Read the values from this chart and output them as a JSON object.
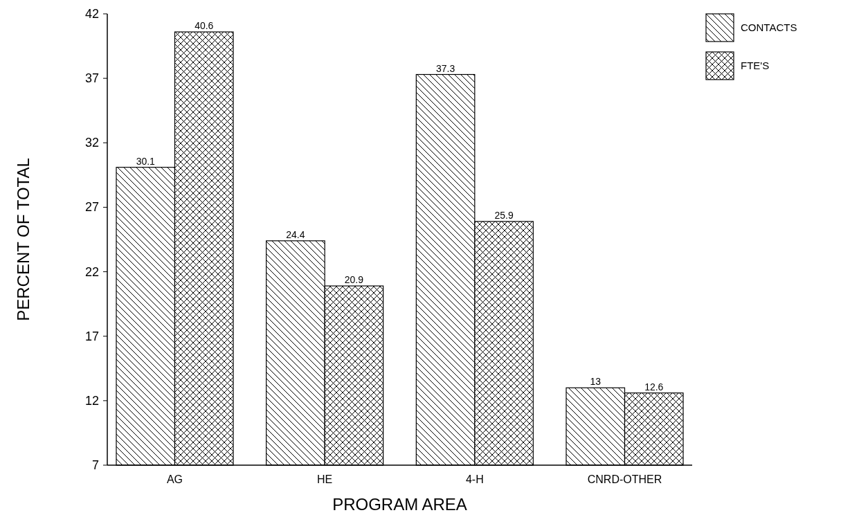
{
  "chart_data": {
    "type": "bar",
    "xlabel": "PROGRAM AREA",
    "ylabel": "PERCENT OF TOTAL",
    "categories": [
      "AG",
      "HE",
      "4-H",
      "CNRD-OTHER"
    ],
    "series": [
      {
        "name": "CONTACTS",
        "color": "#000000",
        "values": [
          30.1,
          24.4,
          37.3,
          13
        ]
      },
      {
        "name": "FTE'S",
        "color": "#000000",
        "values": [
          40.6,
          20.9,
          25.9,
          12.6
        ]
      }
    ],
    "ylim": [
      7,
      42
    ],
    "yticks": [
      7,
      12,
      17,
      22,
      27,
      32,
      37,
      42
    ],
    "data_labels": true,
    "grid": false,
    "legend": "top right"
  }
}
